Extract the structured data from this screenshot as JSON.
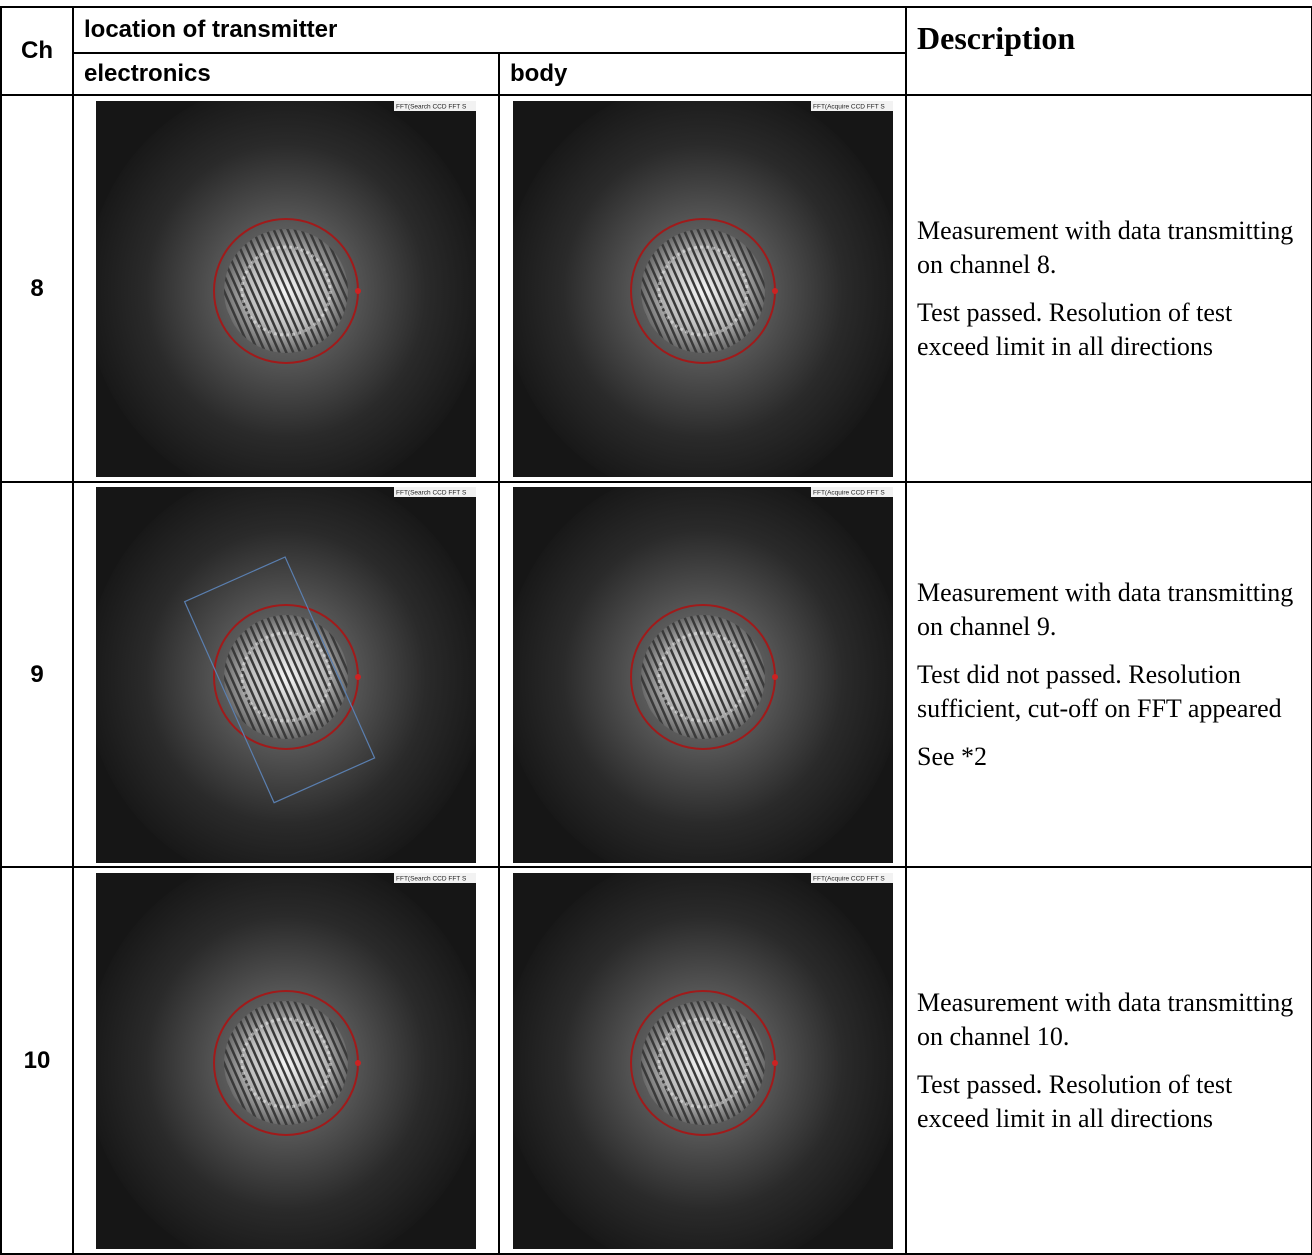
{
  "table": {
    "header": {
      "ch": "Ch",
      "location": "location of transmitter",
      "electronics": "electronics",
      "body": "body",
      "description": "Description"
    },
    "rows": [
      {
        "ch": "8",
        "electronics_label": "FFT(Search CCD FFT S",
        "body_label": "FFT(Acquire CCD FFT S",
        "description": [
          "Measurement with data transmitting on channel 8.",
          "Test passed. Resolution of test exceed limit in all directions"
        ]
      },
      {
        "ch": "9",
        "electronics_label": "FFT(Search CCD FFT S",
        "body_label": "FFT(Acquire CCD FFT S",
        "description": [
          "Measurement with data transmitting on channel 9.",
          "Test did not passed. Resolution sufficient, cut-off on FFT appeared",
          "See *2"
        ]
      },
      {
        "ch": "10",
        "electronics_label": "FFT(Search CCD FFT S",
        "body_label": "FFT(Acquire CCD FFT S",
        "description": [
          "Measurement with data transmitting on channel 10.",
          "Test passed. Resolution of test exceed limit in all directions"
        ]
      }
    ]
  }
}
